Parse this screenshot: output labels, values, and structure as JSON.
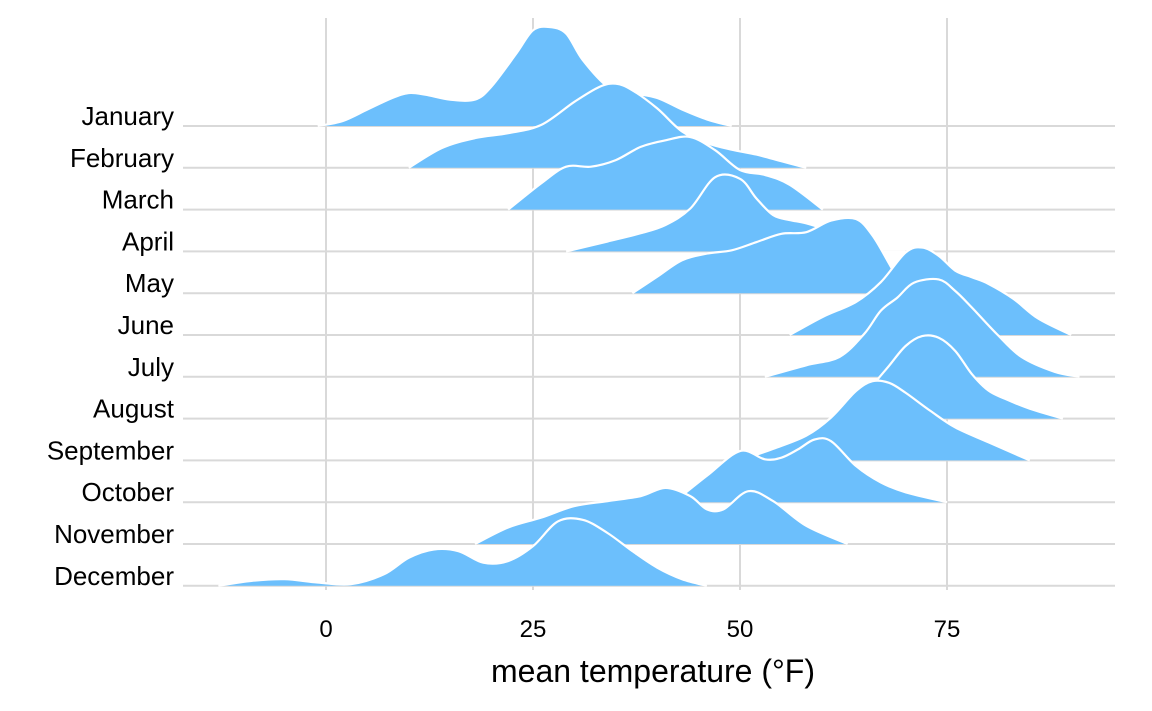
{
  "chart_data": {
    "type": "area",
    "subtype": "ridgeline",
    "xlabel": "mean temperature (°F)",
    "ylabel": "",
    "xlim": [
      -17,
      95
    ],
    "x_ticks": [
      0,
      25,
      50,
      75
    ],
    "grid": true,
    "fill_color": "#6cbffc",
    "outline_color": "#ffffff",
    "categories": [
      "January",
      "February",
      "March",
      "April",
      "May",
      "June",
      "July",
      "August",
      "September",
      "October",
      "November",
      "December"
    ],
    "series": [
      {
        "name": "January",
        "x": [
          -1,
          2,
          5,
          8,
          10,
          12,
          15,
          18,
          20,
          23,
          25,
          27,
          29,
          31,
          34,
          37,
          40,
          43,
          46,
          49
        ],
        "y": [
          0,
          0.15,
          0.5,
          0.85,
          1.0,
          0.95,
          0.8,
          0.8,
          1.2,
          2.2,
          2.9,
          3.0,
          2.8,
          2.0,
          1.2,
          1.0,
          0.85,
          0.5,
          0.2,
          0
        ]
      },
      {
        "name": "February",
        "x": [
          10,
          14,
          18,
          22,
          26,
          30,
          33,
          35,
          37,
          40,
          43,
          46,
          49,
          52,
          55,
          58
        ],
        "y": [
          0,
          0.6,
          0.9,
          1.05,
          1.3,
          2.0,
          2.45,
          2.55,
          2.35,
          1.8,
          1.1,
          0.75,
          0.55,
          0.4,
          0.2,
          0
        ]
      },
      {
        "name": "March",
        "x": [
          22,
          26,
          29,
          32,
          35,
          38,
          41,
          44,
          47,
          50,
          53,
          56,
          60
        ],
        "y": [
          0,
          0.8,
          1.3,
          1.3,
          1.5,
          1.9,
          2.1,
          2.2,
          1.8,
          1.2,
          1.05,
          0.75,
          0
        ]
      },
      {
        "name": "April",
        "x": [
          29,
          34,
          38,
          41,
          44,
          47,
          50,
          52,
          54,
          56,
          58,
          61,
          63,
          65,
          67,
          70
        ],
        "y": [
          0,
          0.3,
          0.55,
          0.8,
          1.3,
          2.25,
          2.2,
          1.6,
          1.1,
          0.95,
          0.85,
          0.6,
          0.3,
          0.05,
          0,
          0
        ]
      },
      {
        "name": "May",
        "x": [
          37,
          40,
          43,
          46,
          49,
          52,
          55,
          58,
          61,
          64,
          66,
          68,
          70
        ],
        "y": [
          0,
          0.5,
          1.0,
          1.2,
          1.3,
          1.55,
          1.8,
          1.85,
          2.2,
          2.25,
          1.75,
          0.9,
          0
        ]
      },
      {
        "name": "June",
        "x": [
          56,
          60,
          64,
          67,
          70,
          72,
          74,
          76,
          78,
          80,
          83,
          86,
          90
        ],
        "y": [
          0,
          0.55,
          1.0,
          1.6,
          2.5,
          2.65,
          2.4,
          1.95,
          1.75,
          1.55,
          1.1,
          0.5,
          0
        ]
      },
      {
        "name": "July",
        "x": [
          53,
          58,
          62,
          65,
          67,
          69,
          71,
          74,
          76,
          78,
          81,
          84,
          88,
          91
        ],
        "y": [
          0,
          0.35,
          0.6,
          1.3,
          2.0,
          2.4,
          2.85,
          2.95,
          2.6,
          2.1,
          1.3,
          0.6,
          0.15,
          0
        ]
      },
      {
        "name": "August",
        "x": [
          61,
          64,
          66,
          68,
          70,
          72,
          74,
          76,
          78,
          80,
          82,
          85,
          89
        ],
        "y": [
          0,
          0.35,
          1.0,
          1.6,
          2.2,
          2.5,
          2.45,
          2.05,
          1.35,
          0.85,
          0.6,
          0.3,
          0
        ]
      },
      {
        "name": "September",
        "x": [
          50,
          54,
          58,
          61,
          64,
          66,
          68,
          70,
          73,
          76,
          80,
          85
        ],
        "y": [
          0,
          0.35,
          0.75,
          1.3,
          2.1,
          2.4,
          2.35,
          2.05,
          1.5,
          1.0,
          0.55,
          0
        ]
      },
      {
        "name": "October",
        "x": [
          42,
          46,
          50,
          53,
          55,
          57,
          59,
          61,
          64,
          67,
          70,
          75
        ],
        "y": [
          0,
          0.8,
          1.55,
          1.3,
          1.35,
          1.6,
          1.9,
          1.85,
          1.1,
          0.6,
          0.3,
          0
        ]
      },
      {
        "name": "November",
        "x": [
          18,
          22,
          26,
          30,
          34,
          38,
          41,
          44,
          46,
          48,
          51,
          54,
          58,
          63
        ],
        "y": [
          0,
          0.5,
          0.8,
          1.15,
          1.3,
          1.45,
          1.7,
          1.45,
          1.05,
          1.05,
          1.6,
          1.3,
          0.55,
          0
        ]
      },
      {
        "name": "December",
        "x": [
          -13,
          -9,
          -5,
          -1,
          3,
          7,
          10,
          13,
          16,
          19,
          22,
          25,
          28,
          31,
          34,
          37,
          40,
          43,
          46
        ],
        "y": [
          0,
          0.15,
          0.2,
          0.1,
          0.05,
          0.35,
          0.85,
          1.1,
          1.05,
          0.7,
          0.75,
          1.2,
          1.95,
          2.0,
          1.6,
          1.05,
          0.55,
          0.2,
          0
        ]
      }
    ]
  }
}
